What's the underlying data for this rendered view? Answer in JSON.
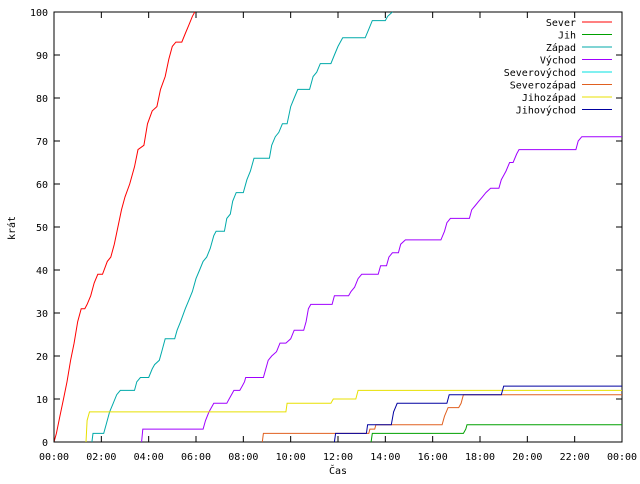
{
  "chart_data": {
    "type": "line",
    "xlabel": "Čas",
    "ylabel": "krát",
    "xlim": [
      0,
      24
    ],
    "ylim": [
      0,
      100
    ],
    "x_ticks": [
      {
        "value": 0,
        "label": "00:00"
      },
      {
        "value": 2,
        "label": "02:00"
      },
      {
        "value": 4,
        "label": "04:00"
      },
      {
        "value": 6,
        "label": "06:00"
      },
      {
        "value": 8,
        "label": "08:00"
      },
      {
        "value": 10,
        "label": "10:00"
      },
      {
        "value": 12,
        "label": "12:00"
      },
      {
        "value": 14,
        "label": "14:00"
      },
      {
        "value": 16,
        "label": "16:00"
      },
      {
        "value": 18,
        "label": "18:00"
      },
      {
        "value": 20,
        "label": "20:00"
      },
      {
        "value": 22,
        "label": "22:00"
      },
      {
        "value": 24,
        "label": "00:00"
      }
    ],
    "y_ticks": [
      {
        "value": 0,
        "label": "0"
      },
      {
        "value": 10,
        "label": "10"
      },
      {
        "value": 20,
        "label": "20"
      },
      {
        "value": 30,
        "label": "30"
      },
      {
        "value": 40,
        "label": "40"
      },
      {
        "value": 50,
        "label": "50"
      },
      {
        "value": 60,
        "label": "60"
      },
      {
        "value": 70,
        "label": "70"
      },
      {
        "value": 80,
        "label": "80"
      },
      {
        "value": 90,
        "label": "90"
      },
      {
        "value": 100,
        "label": "100"
      }
    ],
    "grid": false,
    "legend_position": "top-right",
    "series": [
      {
        "name": "Sever",
        "color": "#ff0000",
        "points": [
          [
            0.0,
            0
          ],
          [
            0.1,
            2
          ],
          [
            0.25,
            6
          ],
          [
            0.4,
            10
          ],
          [
            0.55,
            14
          ],
          [
            0.7,
            19
          ],
          [
            0.85,
            23
          ],
          [
            1.0,
            28
          ],
          [
            1.15,
            31
          ],
          [
            1.3,
            31
          ],
          [
            1.4,
            32
          ],
          [
            1.55,
            34
          ],
          [
            1.7,
            37
          ],
          [
            1.85,
            39
          ],
          [
            2.05,
            39
          ],
          [
            2.25,
            42
          ],
          [
            2.4,
            43
          ],
          [
            2.55,
            46
          ],
          [
            2.7,
            50
          ],
          [
            2.85,
            54
          ],
          [
            3.0,
            57
          ],
          [
            3.2,
            60
          ],
          [
            3.4,
            64
          ],
          [
            3.55,
            68
          ],
          [
            3.8,
            69
          ],
          [
            3.95,
            74
          ],
          [
            4.15,
            77
          ],
          [
            4.35,
            78
          ],
          [
            4.5,
            82
          ],
          [
            4.7,
            85
          ],
          [
            4.85,
            89
          ],
          [
            5.0,
            92
          ],
          [
            5.15,
            93
          ],
          [
            5.4,
            93
          ],
          [
            5.55,
            95
          ],
          [
            5.7,
            97
          ],
          [
            5.85,
            99
          ],
          [
            5.95,
            100
          ]
        ]
      },
      {
        "name": "Jih",
        "color": "#00a000",
        "points": [
          [
            13.4,
            0
          ],
          [
            13.45,
            2
          ],
          [
            17.3,
            2
          ],
          [
            17.4,
            3
          ],
          [
            17.45,
            4
          ],
          [
            24.0,
            4
          ]
        ]
      },
      {
        "name": "Západ",
        "color": "#00aaaa",
        "points": [
          [
            1.6,
            0
          ],
          [
            1.65,
            2
          ],
          [
            2.1,
            2
          ],
          [
            2.2,
            4
          ],
          [
            2.35,
            7
          ],
          [
            2.5,
            9
          ],
          [
            2.65,
            11
          ],
          [
            2.8,
            12
          ],
          [
            3.4,
            12
          ],
          [
            3.5,
            14
          ],
          [
            3.65,
            15
          ],
          [
            4.0,
            15
          ],
          [
            4.15,
            17
          ],
          [
            4.25,
            18
          ],
          [
            4.45,
            19
          ],
          [
            4.55,
            21
          ],
          [
            4.7,
            24
          ],
          [
            5.1,
            24
          ],
          [
            5.2,
            26
          ],
          [
            5.35,
            28
          ],
          [
            5.55,
            31
          ],
          [
            5.7,
            33
          ],
          [
            5.85,
            35
          ],
          [
            6.0,
            38
          ],
          [
            6.15,
            40
          ],
          [
            6.3,
            42
          ],
          [
            6.45,
            43
          ],
          [
            6.6,
            45
          ],
          [
            6.75,
            48
          ],
          [
            6.85,
            49
          ],
          [
            7.2,
            49
          ],
          [
            7.3,
            52
          ],
          [
            7.45,
            53
          ],
          [
            7.55,
            56
          ],
          [
            7.7,
            58
          ],
          [
            8.0,
            58
          ],
          [
            8.15,
            61
          ],
          [
            8.3,
            63
          ],
          [
            8.45,
            66
          ],
          [
            9.1,
            66
          ],
          [
            9.2,
            69
          ],
          [
            9.35,
            71
          ],
          [
            9.5,
            72
          ],
          [
            9.65,
            74
          ],
          [
            9.85,
            74
          ],
          [
            10.0,
            78
          ],
          [
            10.15,
            80
          ],
          [
            10.3,
            82
          ],
          [
            10.8,
            82
          ],
          [
            10.95,
            85
          ],
          [
            11.1,
            86
          ],
          [
            11.25,
            88
          ],
          [
            11.7,
            88
          ],
          [
            11.85,
            90
          ],
          [
            12.0,
            92
          ],
          [
            12.2,
            94
          ],
          [
            13.15,
            94
          ],
          [
            13.3,
            96
          ],
          [
            13.45,
            98
          ],
          [
            14.0,
            98
          ],
          [
            14.1,
            99
          ],
          [
            14.3,
            100
          ]
        ]
      },
      {
        "name": "Východ",
        "color": "#a000ff",
        "points": [
          [
            3.7,
            0
          ],
          [
            3.75,
            3
          ],
          [
            6.3,
            3
          ],
          [
            6.4,
            5
          ],
          [
            6.55,
            7
          ],
          [
            6.75,
            9
          ],
          [
            7.3,
            9
          ],
          [
            7.4,
            10
          ],
          [
            7.5,
            11
          ],
          [
            7.6,
            12
          ],
          [
            7.85,
            12
          ],
          [
            7.95,
            13
          ],
          [
            8.05,
            14
          ],
          [
            8.1,
            15
          ],
          [
            8.85,
            15
          ],
          [
            8.95,
            17
          ],
          [
            9.05,
            19
          ],
          [
            9.2,
            20
          ],
          [
            9.4,
            21
          ],
          [
            9.55,
            23
          ],
          [
            9.8,
            23
          ],
          [
            10.0,
            24
          ],
          [
            10.15,
            26
          ],
          [
            10.55,
            26
          ],
          [
            10.65,
            28
          ],
          [
            10.75,
            31
          ],
          [
            10.85,
            32
          ],
          [
            11.75,
            32
          ],
          [
            11.85,
            34
          ],
          [
            12.45,
            34
          ],
          [
            12.55,
            35
          ],
          [
            12.7,
            36
          ],
          [
            12.85,
            38
          ],
          [
            13.0,
            39
          ],
          [
            13.7,
            39
          ],
          [
            13.8,
            41
          ],
          [
            14.05,
            41
          ],
          [
            14.15,
            43
          ],
          [
            14.3,
            44
          ],
          [
            14.55,
            44
          ],
          [
            14.65,
            46
          ],
          [
            14.85,
            47
          ],
          [
            16.35,
            47
          ],
          [
            16.5,
            49
          ],
          [
            16.6,
            51
          ],
          [
            16.75,
            52
          ],
          [
            17.55,
            52
          ],
          [
            17.65,
            54
          ],
          [
            17.8,
            55
          ],
          [
            17.95,
            56
          ],
          [
            18.1,
            57
          ],
          [
            18.25,
            58
          ],
          [
            18.45,
            59
          ],
          [
            18.8,
            59
          ],
          [
            18.9,
            61
          ],
          [
            19.0,
            62
          ],
          [
            19.1,
            63
          ],
          [
            19.25,
            65
          ],
          [
            19.4,
            65
          ],
          [
            19.55,
            67
          ],
          [
            19.65,
            68
          ],
          [
            22.05,
            68
          ],
          [
            22.15,
            70
          ],
          [
            22.3,
            71
          ],
          [
            24.0,
            71
          ]
        ]
      },
      {
        "name": "Severovýchod",
        "color": "#00e0e0",
        "points": [
          [
            14.4,
            100
          ],
          [
            14.4,
            100
          ]
        ]
      },
      {
        "name": "Severozápad",
        "color": "#e06020",
        "points": [
          [
            8.8,
            0
          ],
          [
            8.85,
            2
          ],
          [
            13.3,
            2
          ],
          [
            13.35,
            3
          ],
          [
            13.55,
            3
          ],
          [
            13.6,
            4
          ],
          [
            16.4,
            4
          ],
          [
            16.5,
            6
          ],
          [
            16.65,
            8
          ],
          [
            17.1,
            8
          ],
          [
            17.2,
            9
          ],
          [
            17.3,
            11
          ],
          [
            24.0,
            11
          ]
        ]
      },
      {
        "name": "Jihozápad",
        "color": "#e8e000",
        "points": [
          [
            1.35,
            0
          ],
          [
            1.4,
            5
          ],
          [
            1.5,
            7
          ],
          [
            9.8,
            7
          ],
          [
            9.85,
            9
          ],
          [
            11.7,
            9
          ],
          [
            11.8,
            10
          ],
          [
            12.75,
            10
          ],
          [
            12.85,
            12
          ],
          [
            24.0,
            12
          ]
        ]
      },
      {
        "name": "Jihovýchod",
        "color": "#0000a0",
        "points": [
          [
            11.85,
            0
          ],
          [
            11.9,
            2
          ],
          [
            13.2,
            2
          ],
          [
            13.25,
            4
          ],
          [
            14.25,
            4
          ],
          [
            14.35,
            7
          ],
          [
            14.5,
            9
          ],
          [
            16.6,
            9
          ],
          [
            16.7,
            11
          ],
          [
            18.9,
            11
          ],
          [
            19.0,
            13
          ],
          [
            24.0,
            13
          ]
        ]
      }
    ]
  }
}
